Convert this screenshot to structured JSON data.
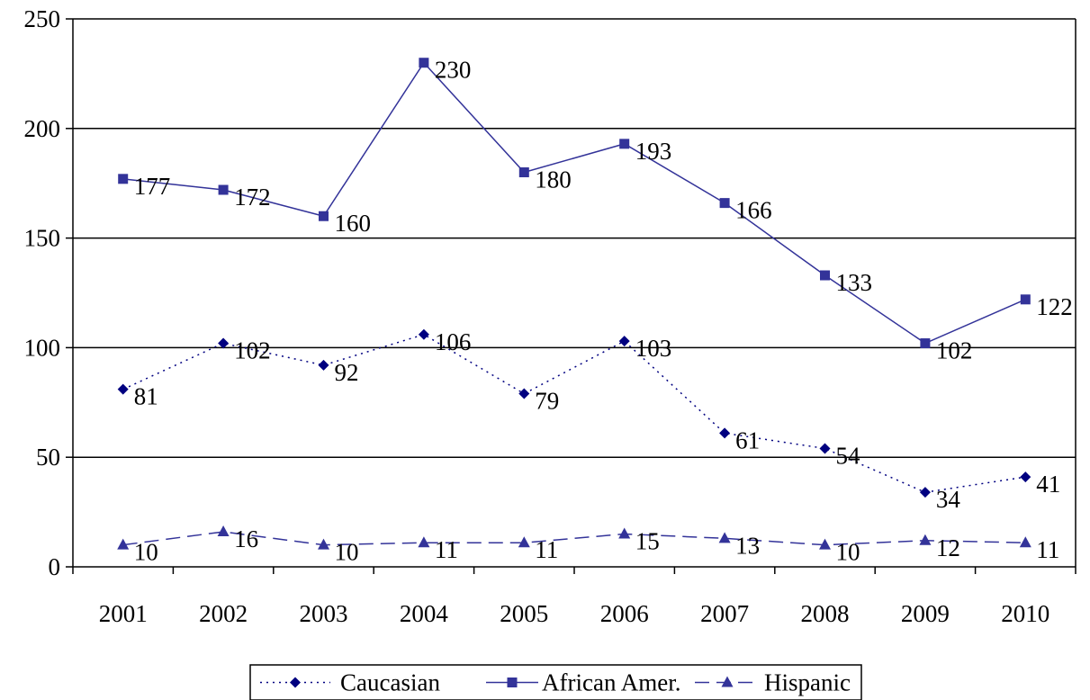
{
  "chart_data": {
    "type": "line",
    "title": "",
    "xlabel": "",
    "ylabel": "",
    "x": [
      "2001",
      "2002",
      "2003",
      "2004",
      "2005",
      "2006",
      "2007",
      "2008",
      "2009",
      "2010"
    ],
    "ylim": [
      0,
      250
    ],
    "yticks": [
      "0",
      "50",
      "100",
      "150",
      "200",
      "250"
    ],
    "grid": "horizontal",
    "legend_position": "bottom",
    "series": [
      {
        "name": "Caucasian",
        "values": [
          81,
          102,
          92,
          106,
          79,
          103,
          61,
          54,
          34,
          41
        ],
        "labels": [
          "81",
          "102",
          "92",
          "106",
          "79",
          "103",
          "61",
          "54",
          "34",
          "41"
        ],
        "color": "#000080",
        "line_style": "dotted",
        "marker": "diamond"
      },
      {
        "name": "African Amer.",
        "values": [
          177,
          172,
          160,
          230,
          180,
          193,
          166,
          133,
          102,
          122
        ],
        "labels": [
          "177",
          "172",
          "160",
          "230",
          "180",
          "193",
          "166",
          "133",
          "102",
          "122"
        ],
        "color": "#333399",
        "line_style": "solid",
        "marker": "square"
      },
      {
        "name": "Hispanic",
        "values": [
          10,
          16,
          10,
          11,
          11,
          15,
          13,
          10,
          12,
          11
        ],
        "labels": [
          "10",
          "16",
          "10",
          "11",
          "11",
          "15",
          "13",
          "10",
          "12",
          "11"
        ],
        "color": "#333399",
        "line_style": "dashed",
        "marker": "triangle"
      }
    ]
  }
}
